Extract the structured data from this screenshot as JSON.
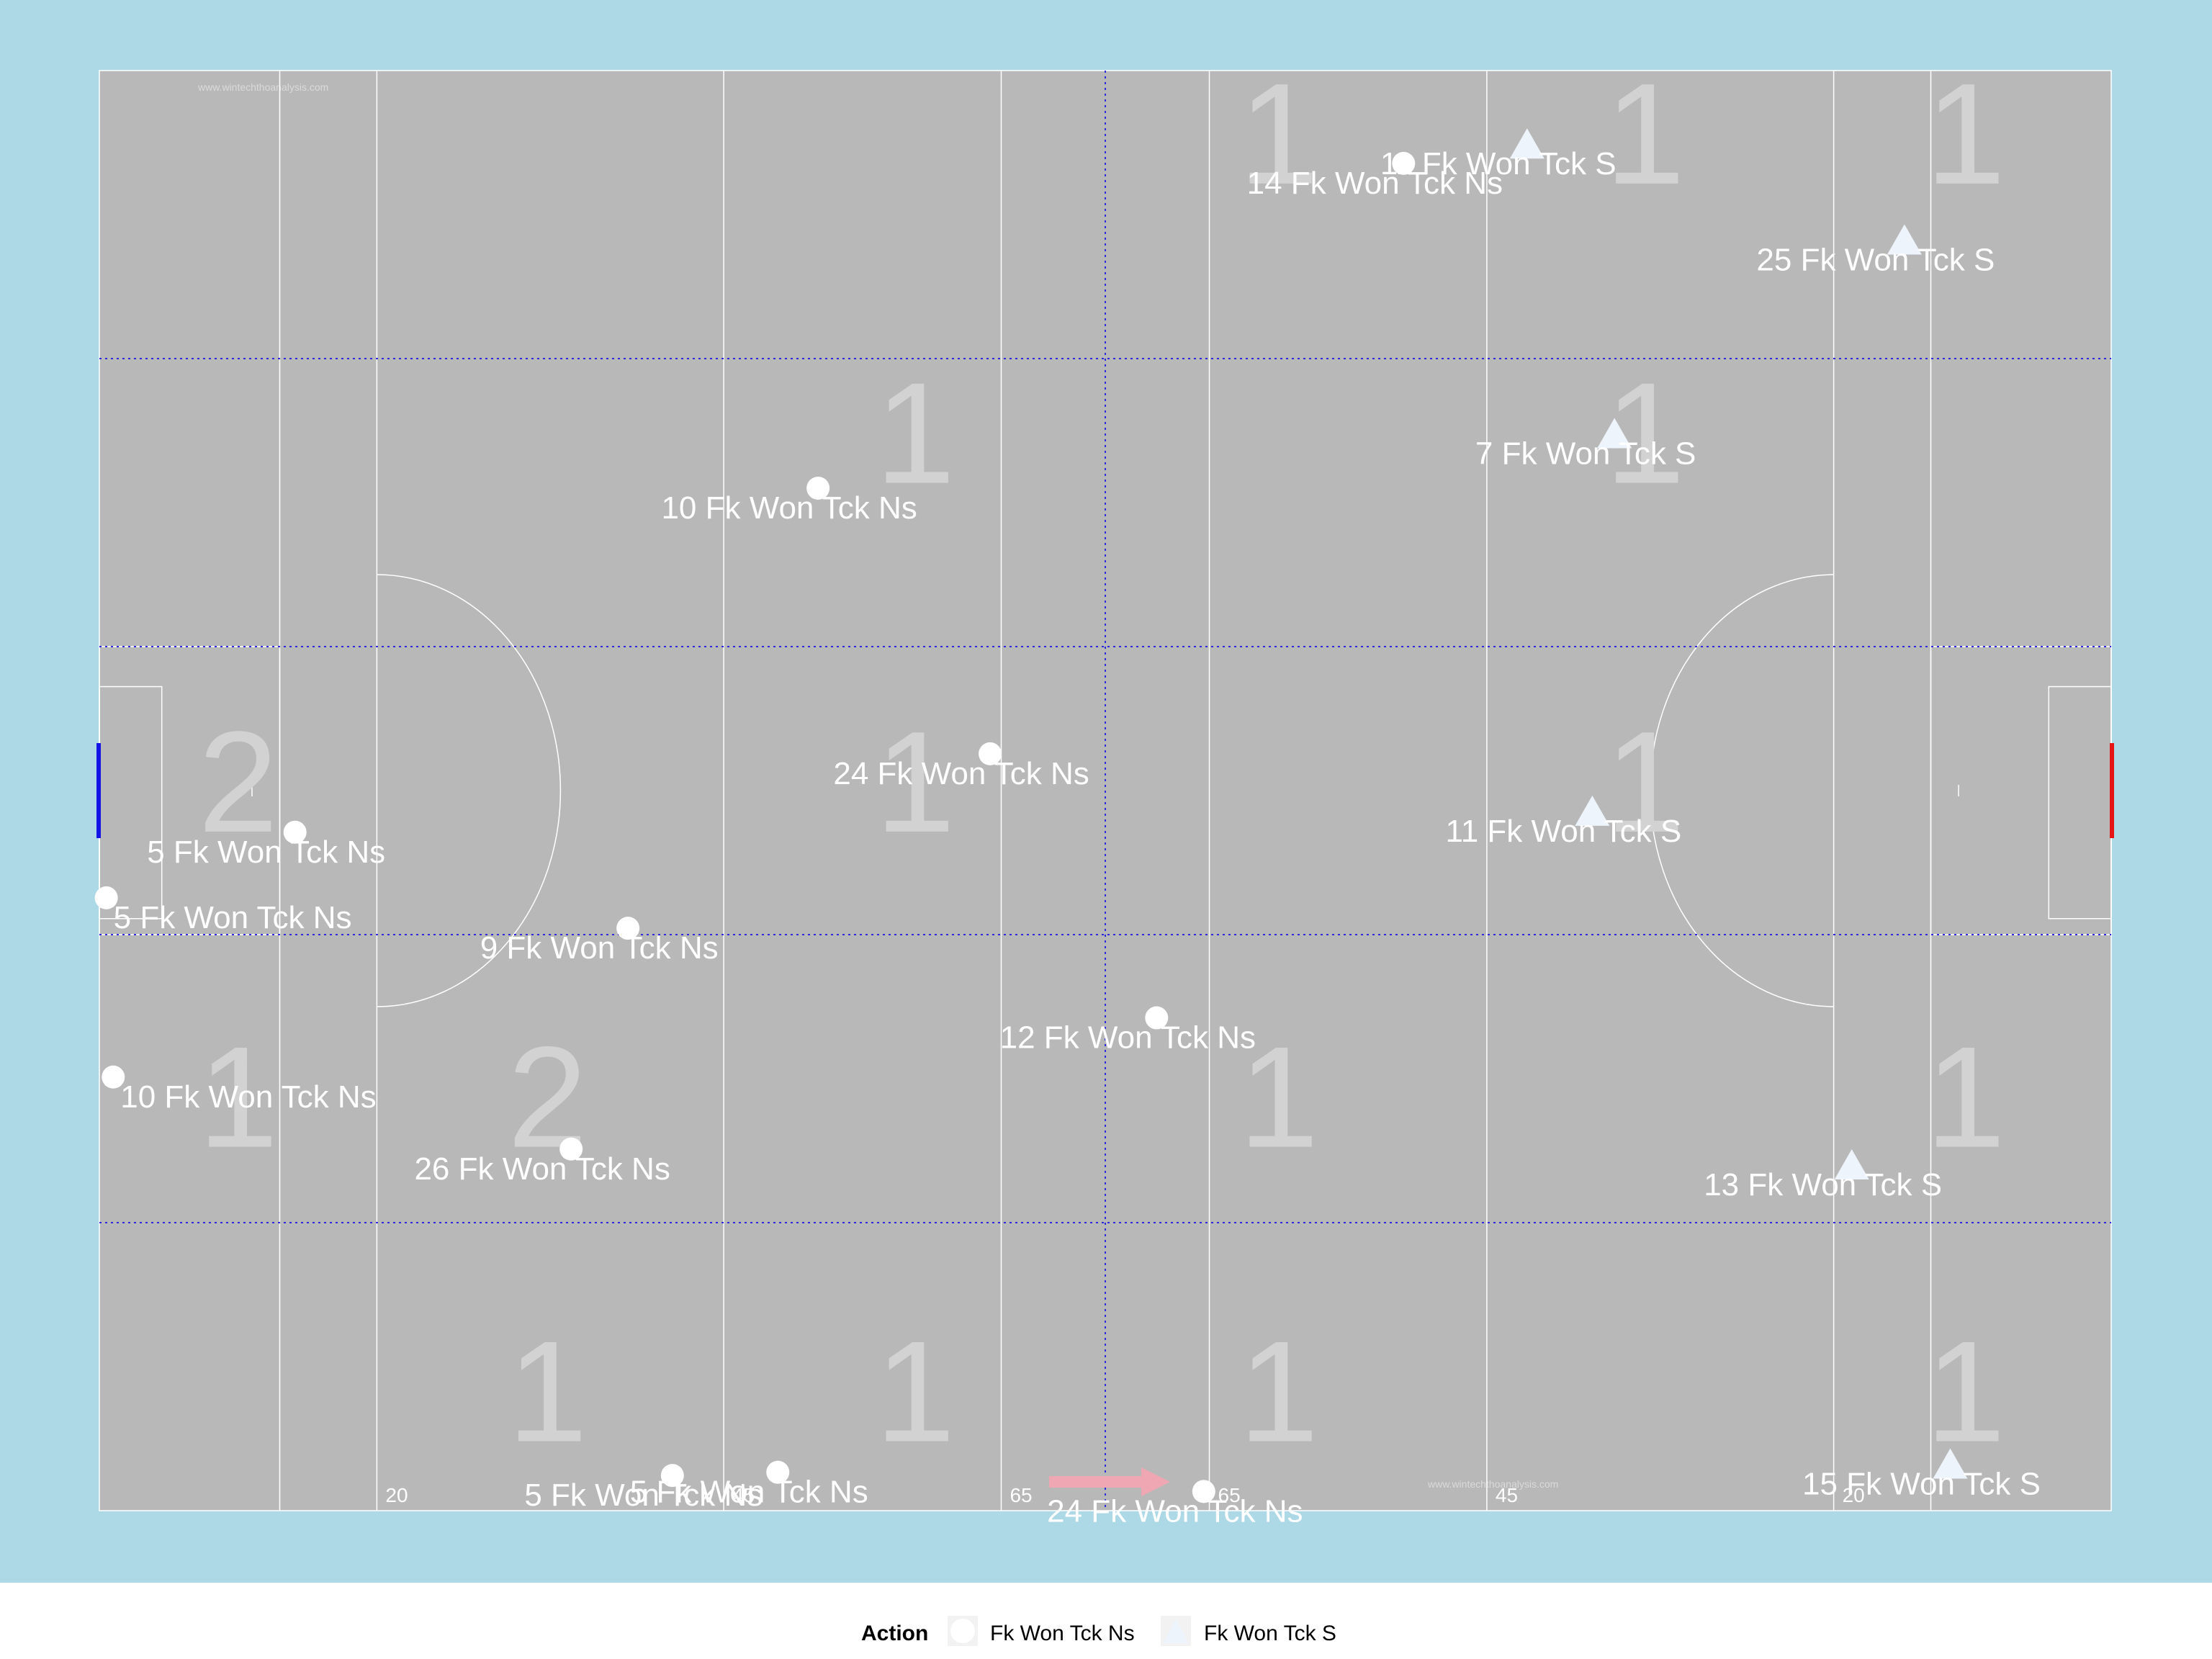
{
  "watermark": "www.wintechthoanalysis.com",
  "colors": {
    "background": "#add8e6",
    "pitch": "#b8b8b8",
    "lines": "#ffffff",
    "grid": "#2b2bd9",
    "zone_count": "#d2d2d2",
    "left_goal": "#1414e6",
    "right_goal": "#e61414",
    "arrow": "#f0a7b4",
    "marker_ns": "#ffffff",
    "marker_s": "#eef4fb"
  },
  "legend": {
    "title": "Action",
    "items": [
      {
        "label": "Fk Won Tck Ns",
        "shape": "circle"
      },
      {
        "label": "Fk Won Tck S",
        "shape": "triangle"
      }
    ]
  },
  "chart_data": {
    "type": "scatter",
    "pitch": {
      "length_m": 145,
      "width_m": 90
    },
    "distance_labels": [
      {
        "label": "20",
        "x": 20
      },
      {
        "label": "45",
        "x": 45
      },
      {
        "label": "65",
        "x": 65
      },
      {
        "label": "65",
        "x": 80
      },
      {
        "label": "45",
        "x": 100
      },
      {
        "label": "20",
        "x": 125
      }
    ],
    "zone_counts": [
      {
        "label": "1",
        "x": 85,
        "y": 86
      },
      {
        "label": "1",
        "x": 111.4,
        "y": 86
      },
      {
        "label": "1",
        "x": 134.5,
        "y": 86
      },
      {
        "label": "1",
        "x": 58.8,
        "y": 67.3
      },
      {
        "label": "1",
        "x": 111.4,
        "y": 67.3
      },
      {
        "label": "2",
        "x": 10,
        "y": 45.5
      },
      {
        "label": "1",
        "x": 58.8,
        "y": 45.5
      },
      {
        "label": "1",
        "x": 111.4,
        "y": 45.5
      },
      {
        "label": "1",
        "x": 10,
        "y": 25.8
      },
      {
        "label": "2",
        "x": 32.3,
        "y": 25.8
      },
      {
        "label": "1",
        "x": 85,
        "y": 25.8
      },
      {
        "label": "1",
        "x": 134.5,
        "y": 25.8
      },
      {
        "label": "1",
        "x": 32.3,
        "y": 7.4
      },
      {
        "label": "1",
        "x": 58.8,
        "y": 7.4
      },
      {
        "label": "1",
        "x": 85,
        "y": 7.4
      },
      {
        "label": "1",
        "x": 134.5,
        "y": 7.4
      }
    ],
    "series": [
      {
        "name": "Fk Won Tck Ns",
        "shape": "circle",
        "points": [
          {
            "x": 94,
            "y": 84.2,
            "label": "14 Fk Won Tck Ns"
          },
          {
            "x": 51.8,
            "y": 63.9,
            "label": "10 Fk Won Tck Ns"
          },
          {
            "x": 64.2,
            "y": 47.3,
            "label": "24 Fk Won Tck Ns"
          },
          {
            "x": 14.1,
            "y": 42.4,
            "label": "5 Fk Won Tck Ns"
          },
          {
            "x": 0.5,
            "y": 38.3,
            "label": "5 Fk Won Tck Ns"
          },
          {
            "x": 38.1,
            "y": 36.4,
            "label": "9 Fk Won Tck Ns"
          },
          {
            "x": 76.2,
            "y": 30.8,
            "label": "12 Fk Won Tck Ns"
          },
          {
            "x": 1,
            "y": 27.1,
            "label": "10 Fk Won Tck Ns"
          },
          {
            "x": 34,
            "y": 22.6,
            "label": "26 Fk Won Tck Ns"
          },
          {
            "x": 48.9,
            "y": 2.4,
            "label": "5 Fk Won Tck Ns"
          },
          {
            "x": 41.3,
            "y": 2.2,
            "label": "5 Fk Won Tck Ns"
          },
          {
            "x": 79.6,
            "y": 1.2,
            "label": "24 Fk Won Tck Ns"
          }
        ]
      },
      {
        "name": "Fk Won Tck S",
        "shape": "triangle",
        "points": [
          {
            "x": 102.9,
            "y": 85.4,
            "label": "11 Fk Won Tck S"
          },
          {
            "x": 130.1,
            "y": 79.4,
            "label": "25 Fk Won Tck S"
          },
          {
            "x": 109.2,
            "y": 67.3,
            "label": "7 Fk Won Tck S"
          },
          {
            "x": 107.6,
            "y": 43.7,
            "label": "11 Fk Won Tck S"
          },
          {
            "x": 126.3,
            "y": 21.6,
            "label": "13 Fk Won Tck S"
          },
          {
            "x": 133.4,
            "y": 2.9,
            "label": "15 Fk Won Tck S"
          }
        ]
      }
    ]
  }
}
